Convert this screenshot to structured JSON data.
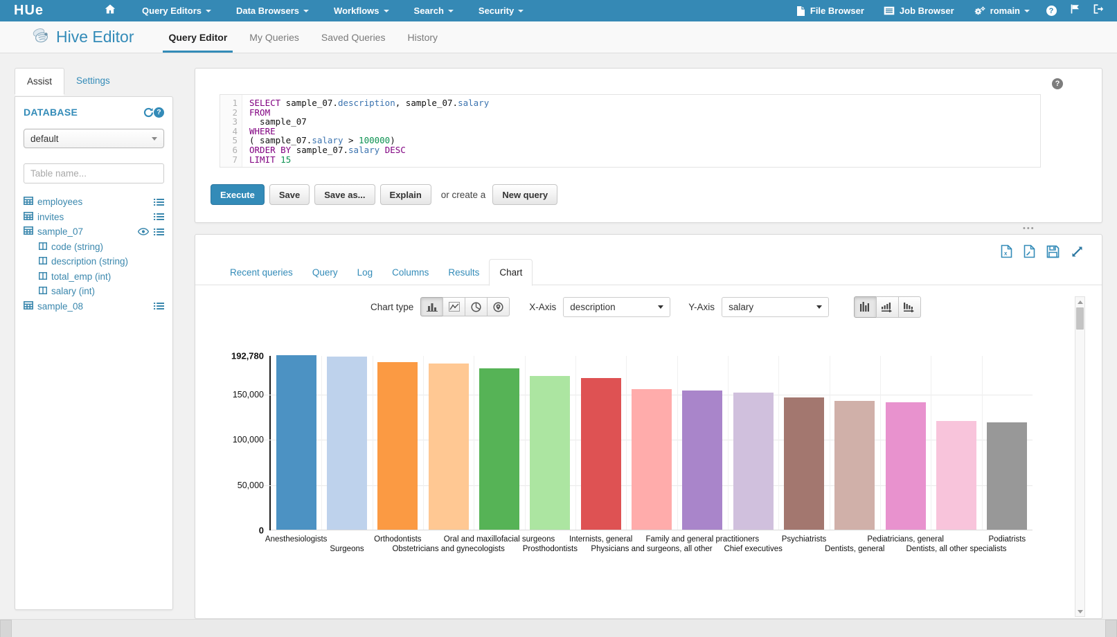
{
  "palette": {
    "accent": "#338bb8",
    "navbar_bg": "#3589b5",
    "sidebar_link": "#3a87ad"
  },
  "navbar": {
    "logo": "HUe",
    "items": [
      {
        "label": "Query Editors",
        "caret": true
      },
      {
        "label": "Data Browsers",
        "caret": true
      },
      {
        "label": "Workflows",
        "caret": true
      },
      {
        "label": "Search",
        "caret": true
      },
      {
        "label": "Security",
        "caret": true
      }
    ],
    "right_items": [
      {
        "icon": "file-icon",
        "label": "File Browser",
        "caret": false
      },
      {
        "icon": "list-icon",
        "label": "Job Browser",
        "caret": false
      },
      {
        "icon": "gears-icon",
        "label": "romain",
        "caret": true
      }
    ],
    "icon_buttons": [
      "help-icon",
      "flag-icon",
      "logout-icon"
    ]
  },
  "subheader": {
    "app_title": "Hive Editor",
    "tabs": [
      {
        "label": "Query Editor",
        "active": true
      },
      {
        "label": "My Queries",
        "active": false
      },
      {
        "label": "Saved Queries",
        "active": false
      },
      {
        "label": "History",
        "active": false
      }
    ]
  },
  "sidebar": {
    "tabs": [
      {
        "label": "Assist",
        "active": true
      },
      {
        "label": "Settings",
        "active": false
      }
    ],
    "database_label": "DATABASE",
    "database_value": "default",
    "filter_placeholder": "Table name...",
    "tables": [
      {
        "name": "employees",
        "right_icons": [
          "menu-icon"
        ],
        "columns": []
      },
      {
        "name": "invites",
        "right_icons": [
          "menu-icon"
        ],
        "columns": []
      },
      {
        "name": "sample_07",
        "right_icons": [
          "eye-icon",
          "menu-icon"
        ],
        "columns": [
          "code (string)",
          "description (string)",
          "total_emp (int)",
          "salary (int)"
        ]
      },
      {
        "name": "sample_08",
        "right_icons": [
          "menu-icon"
        ],
        "columns": []
      }
    ]
  },
  "editor": {
    "lines": [
      {
        "no": "1",
        "segs": [
          {
            "c": "kw",
            "t": "SELECT"
          },
          {
            "c": "pl",
            "t": " sample_07."
          },
          {
            "c": "attr",
            "t": "description"
          },
          {
            "c": "pl",
            "t": ", sample_07."
          },
          {
            "c": "attr",
            "t": "salary"
          }
        ]
      },
      {
        "no": "2",
        "segs": [
          {
            "c": "kw",
            "t": "FROM"
          }
        ]
      },
      {
        "no": "3",
        "segs": [
          {
            "c": "pl",
            "t": "  sample_07"
          }
        ]
      },
      {
        "no": "4",
        "segs": [
          {
            "c": "kw",
            "t": "WHERE"
          }
        ]
      },
      {
        "no": "5",
        "segs": [
          {
            "c": "pl",
            "t": "( sample_07."
          },
          {
            "c": "attr",
            "t": "salary"
          },
          {
            "c": "pl",
            "t": " > "
          },
          {
            "c": "num",
            "t": "100000"
          },
          {
            "c": "pl",
            "t": ")"
          }
        ]
      },
      {
        "no": "6",
        "segs": [
          {
            "c": "kw",
            "t": "ORDER BY"
          },
          {
            "c": "pl",
            "t": " sample_07."
          },
          {
            "c": "attr",
            "t": "salary"
          },
          {
            "c": "pl",
            "t": " "
          },
          {
            "c": "kw",
            "t": "DESC"
          }
        ]
      },
      {
        "no": "7",
        "segs": [
          {
            "c": "kw",
            "t": "LIMIT"
          },
          {
            "c": "pl",
            "t": " "
          },
          {
            "c": "num",
            "t": "15"
          }
        ]
      }
    ]
  },
  "actions": {
    "execute": "Execute",
    "save": "Save",
    "save_as": "Save as...",
    "explain": "Explain",
    "or_create": "or create a",
    "new_query": "New query"
  },
  "results": {
    "tabs": [
      {
        "label": "Recent queries",
        "active": false
      },
      {
        "label": "Query",
        "active": false
      },
      {
        "label": "Log",
        "active": false
      },
      {
        "label": "Columns",
        "active": false
      },
      {
        "label": "Results",
        "active": false
      },
      {
        "label": "Chart",
        "active": true
      }
    ],
    "toolbar_icons": [
      "download-xls-icon",
      "download-csv-icon",
      "save-icon",
      "fullscreen-icon"
    ]
  },
  "chart_controls": {
    "chart_type_label": "Chart type",
    "type_buttons": [
      "bars",
      "lines",
      "pie",
      "map"
    ],
    "active_type": "bars",
    "x_axis_label": "X-Axis",
    "x_axis_value": "description",
    "y_axis_label": "Y-Axis",
    "y_axis_value": "salary",
    "sort_buttons": [
      "sort-none",
      "sort-asc",
      "sort-desc"
    ],
    "active_sort": "sort-none"
  },
  "chart_data": {
    "type": "bar",
    "title": "",
    "xlabel": "description",
    "ylabel": "salary",
    "categories": [
      "Anesthesiologists",
      "Surgeons",
      "Orthodontists",
      "Obstetricians and gynecologists",
      "Oral and maxillofacial surgeons",
      "Prosthodontists",
      "Internists, general",
      "Physicians and surgeons, all other",
      "Family and general practitioners",
      "Chief executives",
      "Psychiatrists",
      "Dentists, general",
      "Pediatricians, general",
      "Dentists, all other specialists",
      "Podiatrists"
    ],
    "values": [
      192780,
      191410,
      185340,
      183600,
      178440,
      169810,
      167270,
      155150,
      153640,
      151370,
      146150,
      142070,
      140690,
      120360,
      118500
    ],
    "colors": [
      "#4C92C3",
      "#BED2EC",
      "#FB9A43",
      "#FFC893",
      "#56B356",
      "#ACE5A1",
      "#DE5253",
      "#FFACAB",
      "#A985CA",
      "#D0C0DD",
      "#A3776F",
      "#D0B0A9",
      "#E892CE",
      "#F8C4DB",
      "#989898"
    ],
    "ylim": [
      0,
      192780
    ],
    "yticks": [
      {
        "value": 0,
        "label": "0",
        "bold": true
      },
      {
        "value": 50000,
        "label": "50,000",
        "bold": false
      },
      {
        "value": 100000,
        "label": "100,000",
        "bold": false
      },
      {
        "value": 150000,
        "label": "150,000",
        "bold": false
      },
      {
        "value": 192780,
        "label": "192,780",
        "bold": true
      }
    ],
    "grid": true,
    "legend": false
  }
}
